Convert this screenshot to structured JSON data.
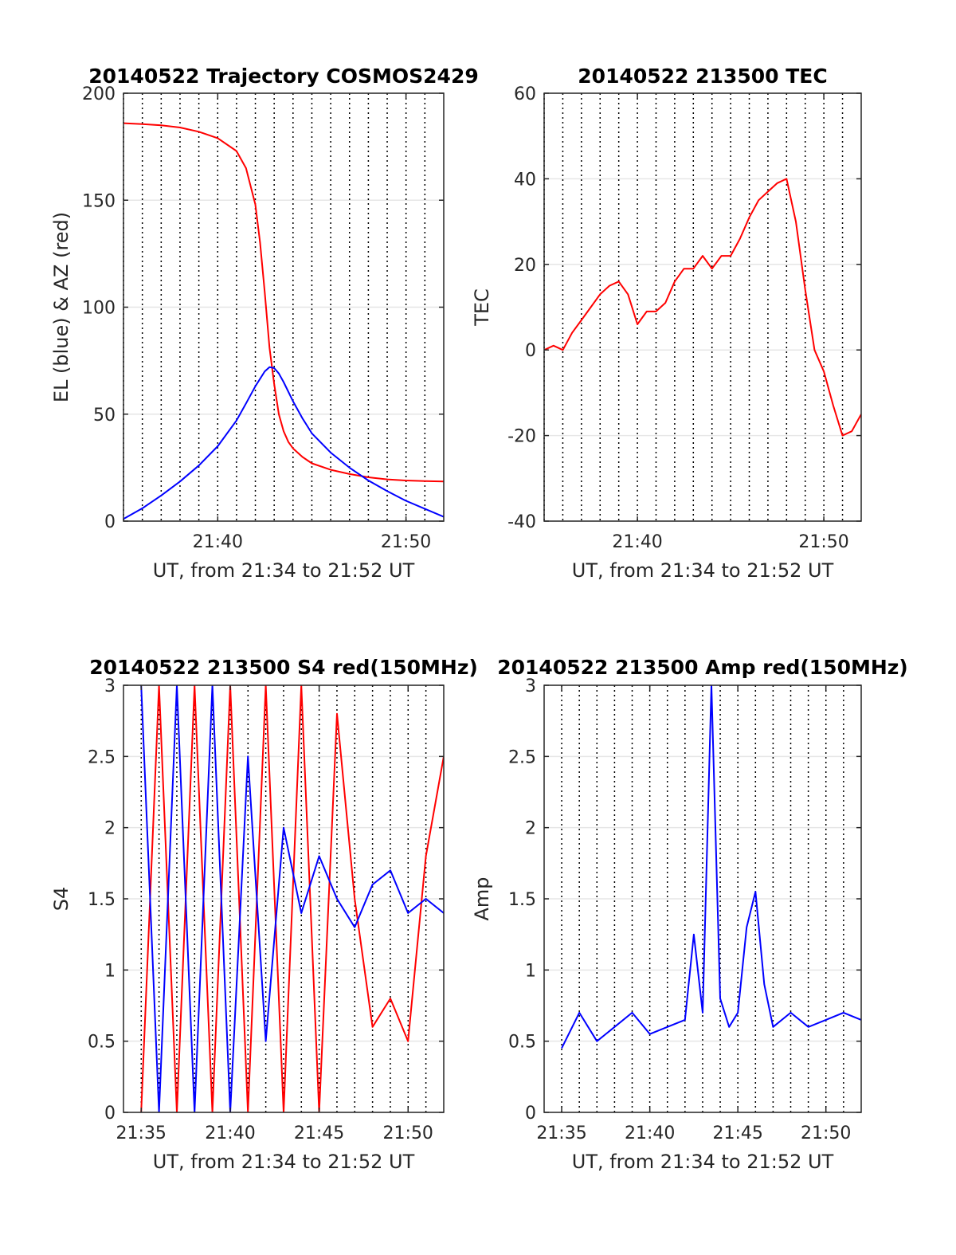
{
  "chart_data": [
    {
      "type": "line",
      "title": "20140522 Trajectory COSMOS2429",
      "xlabel": "UT, from 21:34 to 21:52 UT",
      "ylabel": "EL (blue) & AZ (red)",
      "xlim": [
        21.5833,
        21.8667
      ],
      "ylim": [
        0,
        200
      ],
      "xticks": [
        {
          "v": 21.6667,
          "label": "21:40"
        },
        {
          "v": 21.8333,
          "label": "21:50"
        }
      ],
      "yticks": [
        {
          "v": 0,
          "label": "0"
        },
        {
          "v": 50,
          "label": "50"
        },
        {
          "v": 100,
          "label": "100"
        },
        {
          "v": 150,
          "label": "150"
        },
        {
          "v": 200,
          "label": "200"
        }
      ],
      "series": [
        {
          "color": "#ff0000",
          "x": [
            21.5833,
            21.6,
            21.6167,
            21.6333,
            21.65,
            21.6667,
            21.6833,
            21.6917,
            21.7,
            21.7042,
            21.7083,
            21.7125,
            21.7167,
            21.7208,
            21.725,
            21.7292,
            21.7333,
            21.7417,
            21.75,
            21.7667,
            21.7833,
            21.8,
            21.8167,
            21.8333,
            21.85,
            21.8667
          ],
          "y": [
            186,
            185.6,
            185,
            184,
            182,
            179,
            173,
            165,
            148,
            130,
            107,
            81,
            64,
            50,
            42,
            37,
            34,
            30,
            27,
            24,
            22,
            20.5,
            19.5,
            19,
            18.7,
            18.5
          ]
        },
        {
          "color": "#0000ff",
          "x": [
            21.5833,
            21.6,
            21.6167,
            21.6333,
            21.65,
            21.6667,
            21.6833,
            21.6917,
            21.7,
            21.7083,
            21.7125,
            21.7167,
            21.7208,
            21.725,
            21.7333,
            21.7417,
            21.75,
            21.7667,
            21.7833,
            21.8,
            21.8167,
            21.8333,
            21.8667
          ],
          "y": [
            1,
            6,
            12,
            18.5,
            26,
            35,
            47,
            55,
            63,
            70,
            72,
            71.5,
            69,
            65,
            56,
            48,
            41,
            32,
            25,
            19,
            14,
            9.5,
            2
          ]
        }
      ]
    },
    {
      "type": "line",
      "title": "20140522 213500 TEC",
      "xlabel": "UT, from 21:34 to 21:52 UT",
      "ylabel": "TEC",
      "xlim": [
        21.5833,
        21.8667
      ],
      "ylim": [
        -40,
        60
      ],
      "xticks": [
        {
          "v": 21.6667,
          "label": "21:40"
        },
        {
          "v": 21.8333,
          "label": "21:50"
        }
      ],
      "yticks": [
        {
          "v": -40,
          "label": "-40"
        },
        {
          "v": -20,
          "label": "-20"
        },
        {
          "v": 0,
          "label": "0"
        },
        {
          "v": 20,
          "label": "20"
        },
        {
          "v": 40,
          "label": "40"
        },
        {
          "v": 60,
          "label": "60"
        }
      ],
      "series": [
        {
          "color": "#ff0000",
          "x": [
            21.5833,
            21.5917,
            21.6,
            21.6083,
            21.6167,
            21.625,
            21.6333,
            21.6417,
            21.65,
            21.6583,
            21.6667,
            21.675,
            21.6833,
            21.6917,
            21.7,
            21.7083,
            21.7167,
            21.725,
            21.7333,
            21.7417,
            21.75,
            21.7583,
            21.7667,
            21.775,
            21.7833,
            21.7917,
            21.8,
            21.8083,
            21.8167,
            21.825,
            21.8333,
            21.8417,
            21.85,
            21.8583,
            21.8667
          ],
          "y": [
            0,
            1,
            0,
            4,
            7,
            10,
            13,
            15,
            16,
            13,
            6,
            9,
            9,
            11,
            16,
            19,
            19,
            22,
            19,
            22,
            22,
            26,
            31,
            35,
            37,
            39,
            40,
            30,
            14,
            0,
            -5,
            -13,
            -20,
            -19,
            -15
          ]
        }
      ]
    },
    {
      "type": "line",
      "title": "20140522 213500 S4 red(150MHz)",
      "xlabel": "UT, from 21:34 to 21:52 UT",
      "ylabel": "S4",
      "xlim": [
        21.5667,
        21.8667
      ],
      "ylim": [
        0,
        3
      ],
      "xticks": [
        {
          "v": 21.5833,
          "label": "21:35"
        },
        {
          "v": 21.6667,
          "label": "21:40"
        },
        {
          "v": 21.75,
          "label": "21:45"
        },
        {
          "v": 21.8333,
          "label": "21:50"
        }
      ],
      "yticks": [
        {
          "v": 0,
          "label": "0"
        },
        {
          "v": 0.5,
          "label": "0.5"
        },
        {
          "v": 1,
          "label": "1"
        },
        {
          "v": 1.5,
          "label": "1.5"
        },
        {
          "v": 2,
          "label": "2"
        },
        {
          "v": 2.5,
          "label": "2.5"
        },
        {
          "v": 3,
          "label": "3"
        }
      ],
      "series": [
        {
          "color": "#ff0000",
          "x": [
            21.5833,
            21.6,
            21.6167,
            21.6333,
            21.65,
            21.6667,
            21.6833,
            21.7,
            21.7167,
            21.7333,
            21.75,
            21.7667,
            21.7833,
            21.8,
            21.8167,
            21.8333,
            21.85,
            21.8667
          ],
          "y": [
            0,
            3,
            0,
            3,
            0,
            3,
            0,
            3,
            0,
            3,
            0,
            2.8,
            1.5,
            0.6,
            0.8,
            0.5,
            1.8,
            2.5
          ]
        },
        {
          "color": "#0000ff",
          "x": [
            21.5833,
            21.6,
            21.6167,
            21.6333,
            21.65,
            21.6667,
            21.6833,
            21.7,
            21.7167,
            21.7333,
            21.75,
            21.7667,
            21.7833,
            21.8,
            21.8167,
            21.8333,
            21.85,
            21.8667
          ],
          "y": [
            3,
            0,
            3,
            0,
            3,
            0,
            2.5,
            0.5,
            2,
            1.4,
            1.8,
            1.5,
            1.3,
            1.6,
            1.7,
            1.4,
            1.5,
            1.4
          ]
        }
      ]
    },
    {
      "type": "line",
      "title": "20140522 213500 Amp red(150MHz)",
      "xlabel": "UT, from 21:34 to 21:52 UT",
      "ylabel": "Amp",
      "xlim": [
        21.5667,
        21.8667
      ],
      "ylim": [
        0,
        3
      ],
      "xticks": [
        {
          "v": 21.5833,
          "label": "21:35"
        },
        {
          "v": 21.6667,
          "label": "21:40"
        },
        {
          "v": 21.75,
          "label": "21:45"
        },
        {
          "v": 21.8333,
          "label": "21:50"
        }
      ],
      "yticks": [
        {
          "v": 0,
          "label": "0"
        },
        {
          "v": 0.5,
          "label": "0.5"
        },
        {
          "v": 1,
          "label": "1"
        },
        {
          "v": 1.5,
          "label": "1.5"
        },
        {
          "v": 2,
          "label": "2"
        },
        {
          "v": 2.5,
          "label": "2.5"
        },
        {
          "v": 3,
          "label": "3"
        }
      ],
      "series": [
        {
          "color": "#0000ff",
          "x": [
            21.5833,
            21.6,
            21.6167,
            21.6333,
            21.65,
            21.6667,
            21.6833,
            21.7,
            21.7083,
            21.7167,
            21.725,
            21.7333,
            21.7417,
            21.75,
            21.7583,
            21.7667,
            21.775,
            21.7833,
            21.8,
            21.8167,
            21.8333,
            21.85,
            21.8667
          ],
          "y": [
            0.45,
            0.7,
            0.5,
            0.6,
            0.7,
            0.55,
            0.6,
            0.65,
            1.25,
            0.7,
            3.0,
            0.8,
            0.6,
            0.7,
            1.3,
            1.55,
            0.9,
            0.6,
            0.7,
            0.6,
            0.65,
            0.7,
            0.65
          ]
        }
      ]
    }
  ]
}
